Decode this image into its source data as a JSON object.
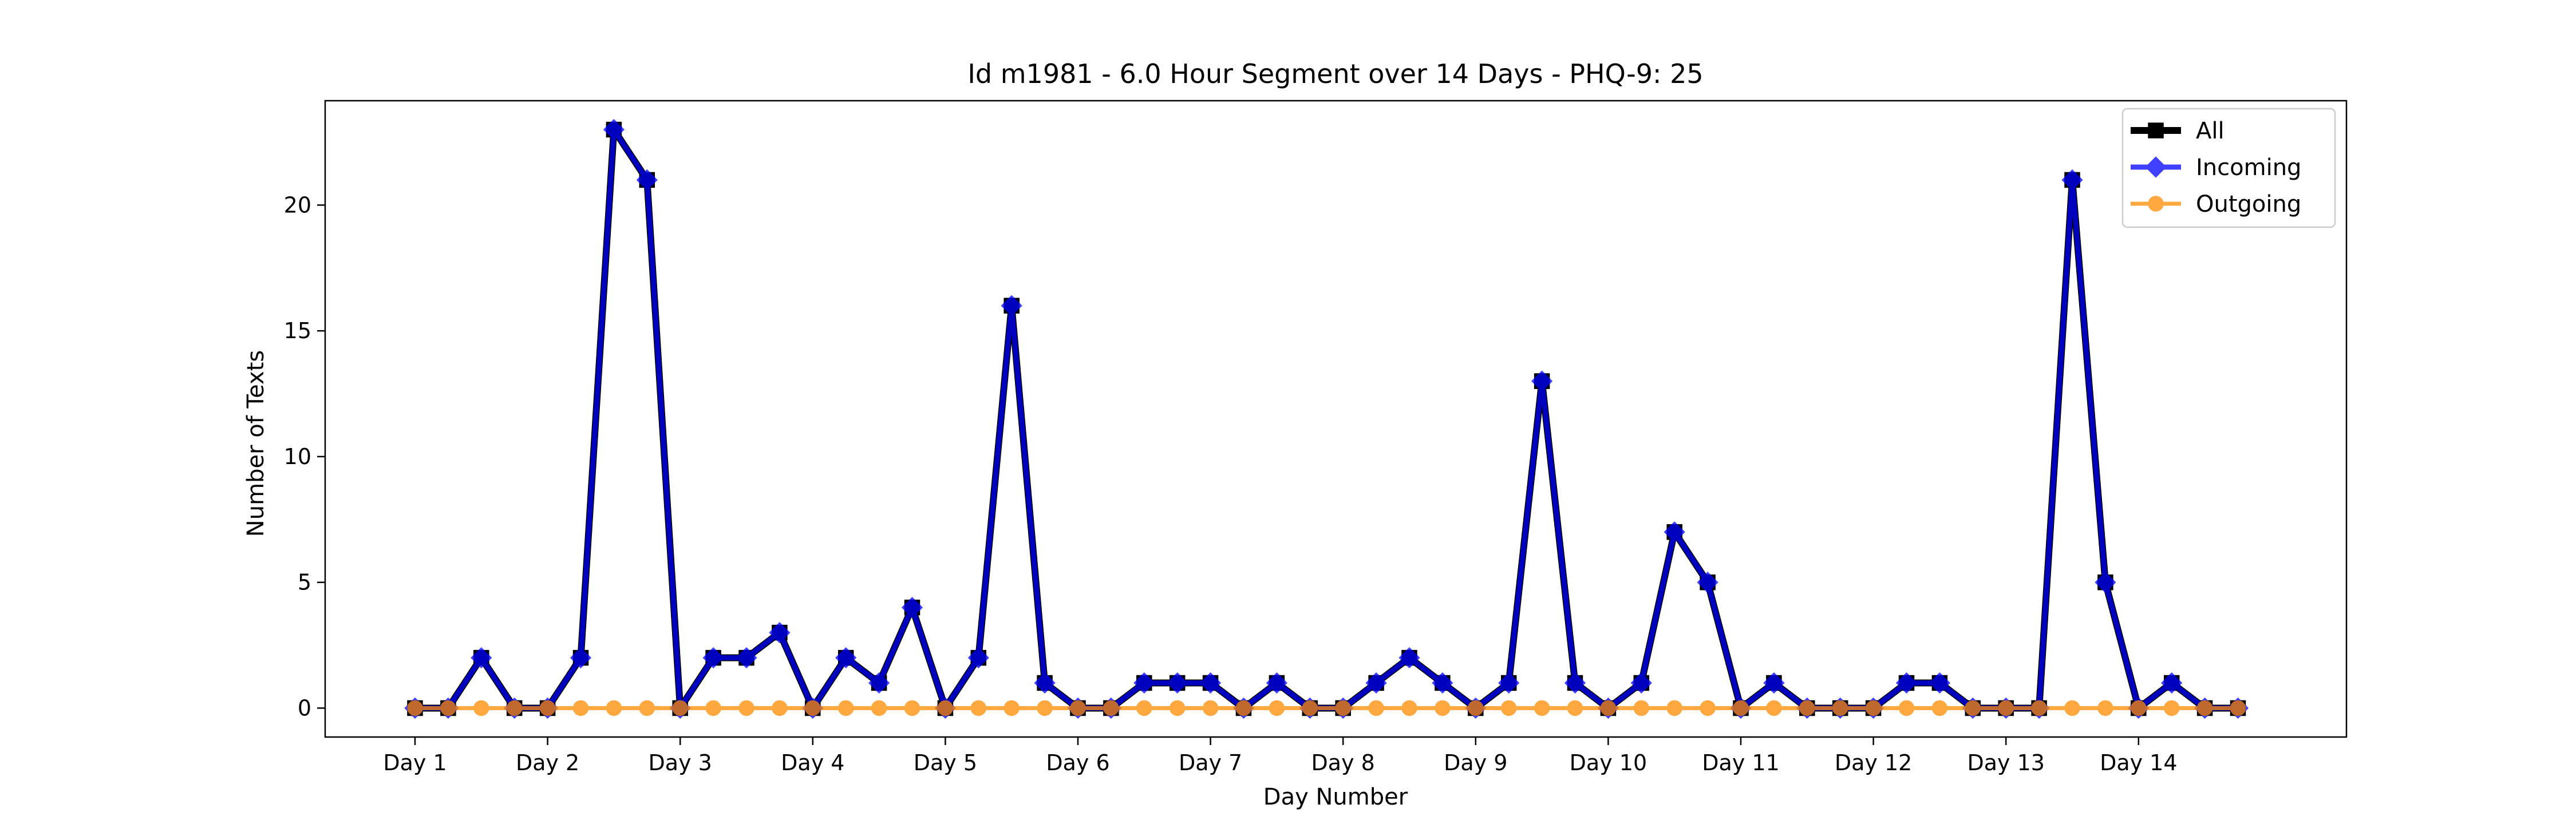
{
  "chart_data": {
    "type": "line",
    "title": "Id m1981 - 6.0 Hour Segment over 14 Days - PHQ-9: 25",
    "xlabel": "Day Number",
    "ylabel": "Number of Texts",
    "x_ticks": [
      "Day 1",
      "Day 2",
      "Day 3",
      "Day 4",
      "Day 5",
      "Day 6",
      "Day 7",
      "Day 8",
      "Day 9",
      "Day 10",
      "Day 11",
      "Day 12",
      "Day 13",
      "Day 14"
    ],
    "y_ticks": [
      0,
      5,
      10,
      15,
      20
    ],
    "ylim": [
      -1.15,
      24.15
    ],
    "points_per_day": 4,
    "legend_position": "upper right",
    "series": [
      {
        "name": "All",
        "color": "#000000",
        "marker": "square",
        "values": [
          0,
          0,
          2,
          0,
          0,
          2,
          23,
          21,
          0,
          2,
          2,
          3,
          0,
          2,
          1,
          4,
          0,
          2,
          16,
          1,
          0,
          0,
          1,
          1,
          1,
          0,
          1,
          0,
          0,
          1,
          2,
          1,
          0,
          1,
          13,
          1,
          0,
          1,
          7,
          5,
          0,
          1,
          0,
          0,
          0,
          1,
          1,
          0,
          0,
          0,
          21,
          5,
          0,
          1,
          0,
          0
        ]
      },
      {
        "name": "Incoming",
        "color": "#0000ff",
        "marker": "diamond",
        "values": [
          0,
          0,
          2,
          0,
          0,
          2,
          23,
          21,
          0,
          2,
          2,
          3,
          0,
          2,
          1,
          4,
          0,
          2,
          16,
          1,
          0,
          0,
          1,
          1,
          1,
          0,
          1,
          0,
          0,
          1,
          2,
          1,
          0,
          1,
          13,
          1,
          0,
          1,
          7,
          5,
          0,
          1,
          0,
          0,
          0,
          1,
          1,
          0,
          0,
          0,
          21,
          5,
          0,
          1,
          0,
          0
        ]
      },
      {
        "name": "Outgoing",
        "color": "#ff8c00",
        "marker": "circle",
        "values": [
          0,
          0,
          0,
          0,
          0,
          0,
          0,
          0,
          0,
          0,
          0,
          0,
          0,
          0,
          0,
          0,
          0,
          0,
          0,
          0,
          0,
          0,
          0,
          0,
          0,
          0,
          0,
          0,
          0,
          0,
          0,
          0,
          0,
          0,
          0,
          0,
          0,
          0,
          0,
          0,
          0,
          0,
          0,
          0,
          0,
          0,
          0,
          0,
          0,
          0,
          0,
          0,
          0,
          0,
          0,
          0
        ]
      }
    ]
  }
}
